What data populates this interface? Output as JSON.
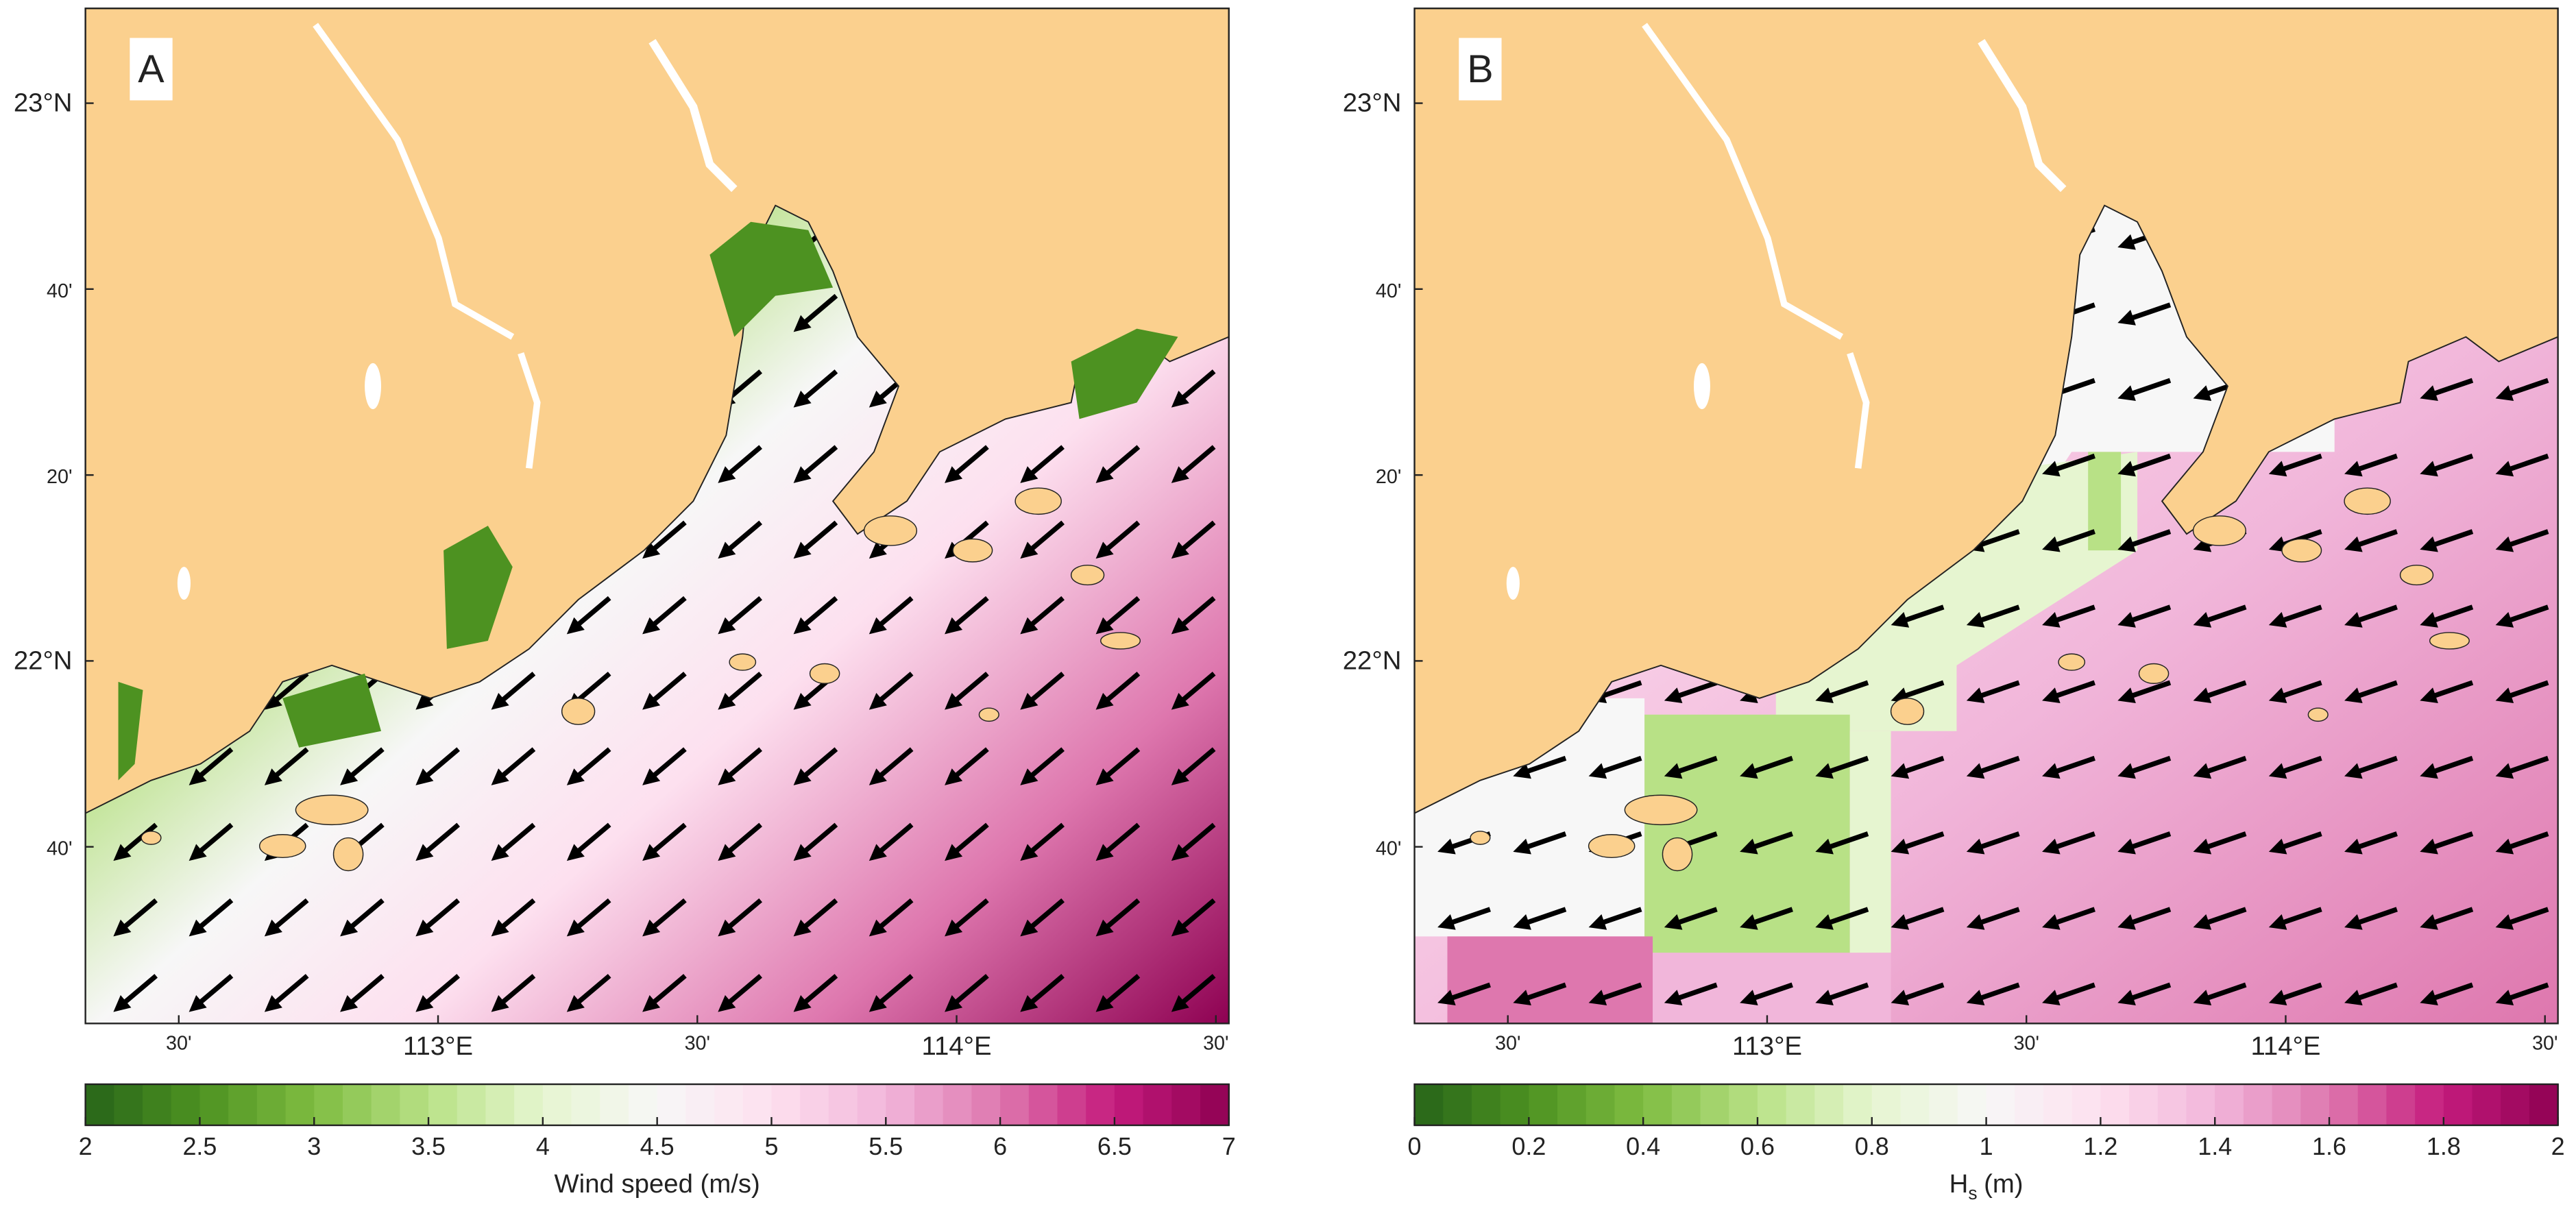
{
  "panels": [
    {
      "label": "A",
      "lat_range": [
        21.35,
        23.17
      ],
      "lon_range": [
        112.32,
        114.525
      ],
      "lat_ticks": [
        {
          "value": 23,
          "label": "23°N"
        },
        {
          "value": 22.6667,
          "label": "40'"
        },
        {
          "value": 22.3333,
          "label": "20'"
        },
        {
          "value": 22,
          "label": "22°N"
        },
        {
          "value": 21.6667,
          "label": "40'"
        }
      ],
      "lon_ticks": [
        {
          "value": 112.5,
          "label": "30'"
        },
        {
          "value": 113,
          "label": "113°E"
        },
        {
          "value": 113.5,
          "label": "30'"
        },
        {
          "value": 114,
          "label": "114°E"
        },
        {
          "value": 114.5,
          "label": "30'"
        }
      ],
      "colorbar": {
        "range": [
          2,
          7
        ],
        "ticks": [
          2,
          2.5,
          3,
          3.5,
          4,
          4.5,
          5,
          5.5,
          6,
          6.5,
          7
        ],
        "label": "Wind speed (m/s)"
      }
    },
    {
      "label": "B",
      "lat_range": [
        21.35,
        23.17
      ],
      "lon_range": [
        112.32,
        114.525
      ],
      "lat_ticks": [
        {
          "value": 23,
          "label": "23°N"
        },
        {
          "value": 22.6667,
          "label": "40'"
        },
        {
          "value": 22.3333,
          "label": "20'"
        },
        {
          "value": 22,
          "label": "22°N"
        },
        {
          "value": 21.6667,
          "label": "40'"
        }
      ],
      "lon_ticks": [
        {
          "value": 112.5,
          "label": "30'"
        },
        {
          "value": 113,
          "label": "113°E"
        },
        {
          "value": 113.5,
          "label": "30'"
        },
        {
          "value": 114,
          "label": "114°E"
        },
        {
          "value": 114.5,
          "label": "30'"
        }
      ],
      "colorbar": {
        "range": [
          0,
          2
        ],
        "ticks": [
          0,
          0.2,
          0.4,
          0.6,
          0.8,
          1,
          1.2,
          1.4,
          1.6,
          1.8,
          2
        ],
        "label": {
          "symbol": "H",
          "subscript": "s",
          "unit": "(m)"
        }
      }
    }
  ],
  "colormap": [
    "#276419",
    "#4d9221",
    "#7fbc41",
    "#b8e186",
    "#e6f5d0",
    "#f7f7f7",
    "#fde0ef",
    "#f1b6da",
    "#de77ae",
    "#c51b7d",
    "#8e0152"
  ],
  "land_color": "#fbd08e"
}
